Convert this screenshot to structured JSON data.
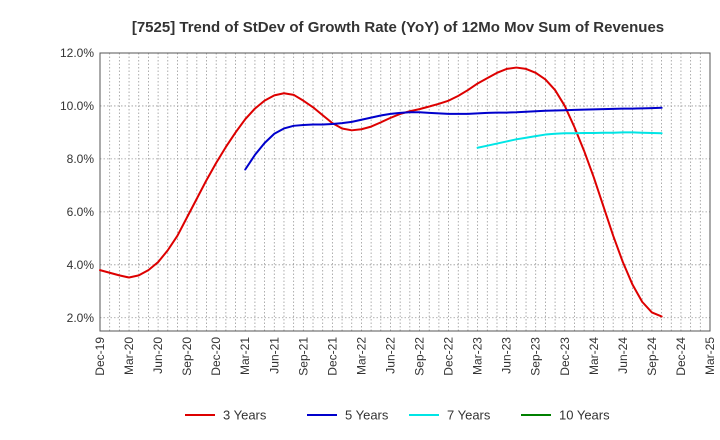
{
  "chart_data": {
    "type": "line",
    "title": "[7525]  Trend of StDev of Growth Rate (YoY) of 12Mo Mov Sum of Revenues",
    "xlabel": "",
    "ylabel": "",
    "ylim": [
      1.5,
      12.0
    ],
    "y_ticks": [
      2.0,
      4.0,
      6.0,
      8.0,
      10.0,
      12.0
    ],
    "y_tick_labels": [
      "2.0%",
      "4.0%",
      "6.0%",
      "8.0%",
      "10.0%",
      "12.0%"
    ],
    "x_tick_labels": [
      "Dec-19",
      "Mar-20",
      "Jun-20",
      "Sep-20",
      "Dec-20",
      "Mar-21",
      "Jun-21",
      "Sep-21",
      "Dec-21",
      "Mar-22",
      "Jun-22",
      "Sep-22",
      "Dec-22",
      "Mar-23",
      "Jun-23",
      "Sep-23",
      "Dec-23",
      "Mar-24",
      "Jun-24",
      "Sep-24",
      "Dec-24",
      "Mar-25"
    ],
    "grid": true,
    "legend_position": "bottom",
    "series": [
      {
        "name": "3 Years",
        "color": "#dd0000",
        "start_index": 0,
        "values": [
          3.8,
          3.7,
          3.6,
          3.52,
          3.6,
          3.8,
          4.1,
          4.55,
          5.1,
          5.8,
          6.5,
          7.2,
          7.85,
          8.45,
          9.0,
          9.5,
          9.9,
          10.2,
          10.4,
          10.48,
          10.42,
          10.2,
          9.95,
          9.65,
          9.35,
          9.15,
          9.08,
          9.12,
          9.22,
          9.38,
          9.55,
          9.7,
          9.8,
          9.88,
          9.98,
          10.08,
          10.2,
          10.38,
          10.6,
          10.85,
          11.05,
          11.25,
          11.4,
          11.45,
          11.4,
          11.25,
          11.0,
          10.6,
          10.0,
          9.2,
          8.3,
          7.3,
          6.2,
          5.1,
          4.1,
          3.25,
          2.6,
          2.2,
          2.05
        ]
      },
      {
        "name": "5 Years",
        "color": "#0000cc",
        "start_index": 15,
        "values": [
          7.6,
          8.15,
          8.6,
          8.95,
          9.15,
          9.25,
          9.28,
          9.3,
          9.3,
          9.32,
          9.35,
          9.4,
          9.48,
          9.56,
          9.64,
          9.7,
          9.74,
          9.76,
          9.76,
          9.74,
          9.72,
          9.7,
          9.7,
          9.7,
          9.72,
          9.74,
          9.75,
          9.75,
          9.76,
          9.78,
          9.8,
          9.82,
          9.83,
          9.84,
          9.85,
          9.86,
          9.87,
          9.88,
          9.89,
          9.9,
          9.9,
          9.91,
          9.92,
          9.93
        ]
      },
      {
        "name": "7 Years",
        "color": "#00e5e5",
        "start_index": 39,
        "values": [
          8.42,
          8.5,
          8.58,
          8.66,
          8.74,
          8.8,
          8.86,
          8.92,
          8.95,
          8.97,
          8.97,
          8.98,
          8.98,
          8.99,
          8.99,
          9.0,
          9.0,
          8.99,
          8.98,
          8.97
        ]
      },
      {
        "name": "10 Years",
        "color": "#008000",
        "start_index": 0,
        "values": []
      }
    ]
  }
}
